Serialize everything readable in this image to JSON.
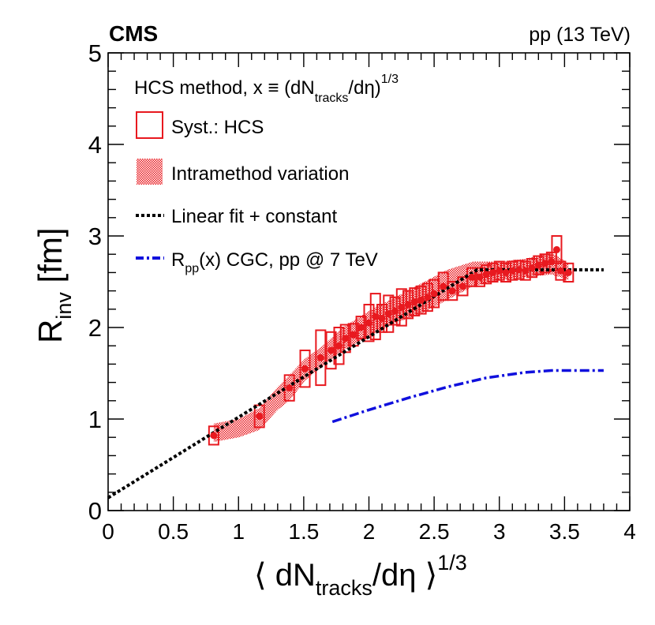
{
  "header": {
    "experiment": "CMS",
    "energy": "pp (13 TeV)"
  },
  "legend": {
    "title_main": "HCS method, x ≡ (dN",
    "title_sub": "tracks",
    "title_tail": "/dη)",
    "title_sup": "1/3",
    "syst_label": "Syst.: HCS",
    "intra_label": "Intramethod variation",
    "fit_label": "Linear fit + constant",
    "cgc_label_main": "R",
    "cgc_label_sub": "pp",
    "cgc_label_tail": "(x) CGC, pp @ 7 TeV"
  },
  "chart_data": {
    "type": "scatter",
    "title": "",
    "xlabel": "⟨ dN_tracks/dη ⟩^(1/3)",
    "ylabel": "R_inv [fm]",
    "xlim": [
      0,
      4
    ],
    "ylim": [
      0,
      5
    ],
    "x_ticks": [
      "0",
      "0.5",
      "1",
      "1.5",
      "2",
      "2.5",
      "3",
      "3.5",
      "4"
    ],
    "y_ticks": [
      "0",
      "1",
      "2",
      "3",
      "4",
      "5"
    ],
    "axis_labels": {
      "y_main": "R",
      "y_sub": "inv",
      "y_tail": " [fm]",
      "x_main": "⟨ dN",
      "x_sub": "tracks",
      "x_tail": "/dη ⟩",
      "x_sup": "1/3"
    },
    "series": [
      {
        "name": "HCS data",
        "color": "#e8191f",
        "points": [
          {
            "x": 0.81,
            "y": 0.82,
            "syst": 0.1
          },
          {
            "x": 1.16,
            "y": 1.03,
            "syst": 0.12
          },
          {
            "x": 1.39,
            "y": 1.34,
            "syst": 0.14
          },
          {
            "x": 1.51,
            "y": 1.55,
            "syst": 0.2
          },
          {
            "x": 1.63,
            "y": 1.67,
            "syst": 0.3
          },
          {
            "x": 1.71,
            "y": 1.75,
            "syst": 0.2
          },
          {
            "x": 1.77,
            "y": 1.8,
            "syst": 0.2
          },
          {
            "x": 1.82,
            "y": 1.88,
            "syst": 0.15
          },
          {
            "x": 1.88,
            "y": 1.92,
            "syst": 0.12
          },
          {
            "x": 1.94,
            "y": 2.0,
            "syst": 0.12
          },
          {
            "x": 2.0,
            "y": 2.05,
            "syst": 0.2
          },
          {
            "x": 2.05,
            "y": 2.12,
            "syst": 0.25
          },
          {
            "x": 2.1,
            "y": 2.1,
            "syst": 0.15
          },
          {
            "x": 2.15,
            "y": 2.15,
            "syst": 0.2
          },
          {
            "x": 2.2,
            "y": 2.18,
            "syst": 0.15
          },
          {
            "x": 2.25,
            "y": 2.22,
            "syst": 0.2
          },
          {
            "x": 2.3,
            "y": 2.25,
            "syst": 0.15
          },
          {
            "x": 2.35,
            "y": 2.28,
            "syst": 0.15
          },
          {
            "x": 2.4,
            "y": 2.3,
            "syst": 0.15
          },
          {
            "x": 2.45,
            "y": 2.33,
            "syst": 0.15
          },
          {
            "x": 2.5,
            "y": 2.37,
            "syst": 0.15
          },
          {
            "x": 2.57,
            "y": 2.45,
            "syst": 0.15
          },
          {
            "x": 2.64,
            "y": 2.4,
            "syst": 0.1
          },
          {
            "x": 2.72,
            "y": 2.45,
            "syst": 0.1
          },
          {
            "x": 2.79,
            "y": 2.55,
            "syst": 0.1
          },
          {
            "x": 2.85,
            "y": 2.55,
            "syst": 0.1
          },
          {
            "x": 2.9,
            "y": 2.58,
            "syst": 0.1
          },
          {
            "x": 2.95,
            "y": 2.6,
            "syst": 0.1
          },
          {
            "x": 3.0,
            "y": 2.62,
            "syst": 0.1
          },
          {
            "x": 3.05,
            "y": 2.6,
            "syst": 0.1
          },
          {
            "x": 3.1,
            "y": 2.62,
            "syst": 0.1
          },
          {
            "x": 3.15,
            "y": 2.63,
            "syst": 0.1
          },
          {
            "x": 3.2,
            "y": 2.62,
            "syst": 0.1
          },
          {
            "x": 3.25,
            "y": 2.65,
            "syst": 0.1
          },
          {
            "x": 3.3,
            "y": 2.68,
            "syst": 0.1
          },
          {
            "x": 3.35,
            "y": 2.7,
            "syst": 0.1
          },
          {
            "x": 3.4,
            "y": 2.72,
            "syst": 0.1
          },
          {
            "x": 3.44,
            "y": 2.85,
            "syst": 0.15
          },
          {
            "x": 3.47,
            "y": 2.62,
            "syst": 0.1
          },
          {
            "x": 3.53,
            "y": 2.6,
            "syst": 0.1
          }
        ]
      },
      {
        "name": "Intramethod variation band",
        "color": "#e8191f",
        "x": [
          0.81,
          1.0,
          1.16,
          1.3,
          1.39,
          1.51,
          1.63,
          1.8,
          2.0,
          2.2,
          2.4,
          2.6,
          2.8,
          3.0,
          3.2,
          3.4,
          3.53
        ],
        "upper": [
          0.95,
          1.0,
          1.12,
          1.35,
          1.48,
          1.66,
          1.78,
          2.0,
          2.18,
          2.33,
          2.48,
          2.63,
          2.72,
          2.72,
          2.75,
          2.82,
          2.7
        ],
        "lower": [
          0.75,
          0.8,
          0.88,
          1.1,
          1.2,
          1.42,
          1.56,
          1.75,
          1.9,
          2.05,
          2.15,
          2.3,
          2.45,
          2.52,
          2.55,
          2.58,
          2.52
        ]
      },
      {
        "name": "Linear fit + constant",
        "color": "#000000",
        "x": [
          0.0,
          2.83,
          3.8
        ],
        "y": [
          0.14,
          2.63,
          2.63
        ]
      },
      {
        "name": "R_pp(x) CGC, pp @ 7 TeV",
        "color": "#1010dd",
        "x": [
          1.72,
          2.0,
          2.3,
          2.6,
          2.9,
          3.2,
          3.4,
          3.6,
          3.8
        ],
        "y": [
          0.97,
          1.1,
          1.23,
          1.35,
          1.45,
          1.51,
          1.53,
          1.53,
          1.53
        ]
      }
    ]
  }
}
